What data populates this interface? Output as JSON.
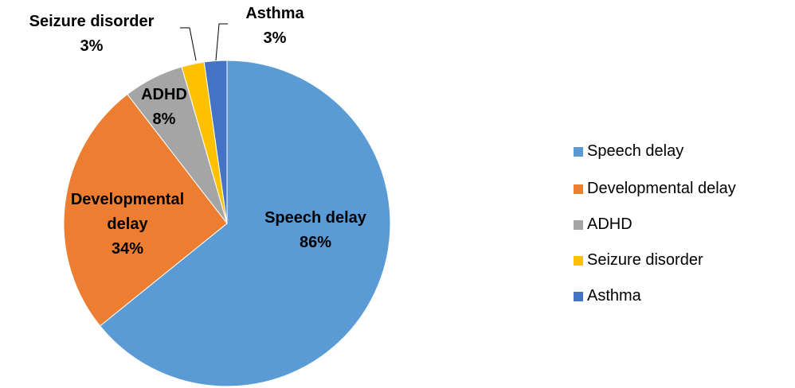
{
  "chart_data": {
    "type": "pie",
    "categories": [
      "Speech delay",
      "Developmental delay",
      "ADHD",
      "Seizure disorder",
      "Asthma"
    ],
    "values": [
      86,
      34,
      8,
      3,
      3
    ],
    "value_labels": [
      "86%",
      "34%",
      "8%",
      "3%",
      "3%"
    ],
    "colors": [
      "#5B9BD5",
      "#ED7D31",
      "#A5A5A5",
      "#FFC000",
      "#4472C4"
    ],
    "legend": "right"
  }
}
